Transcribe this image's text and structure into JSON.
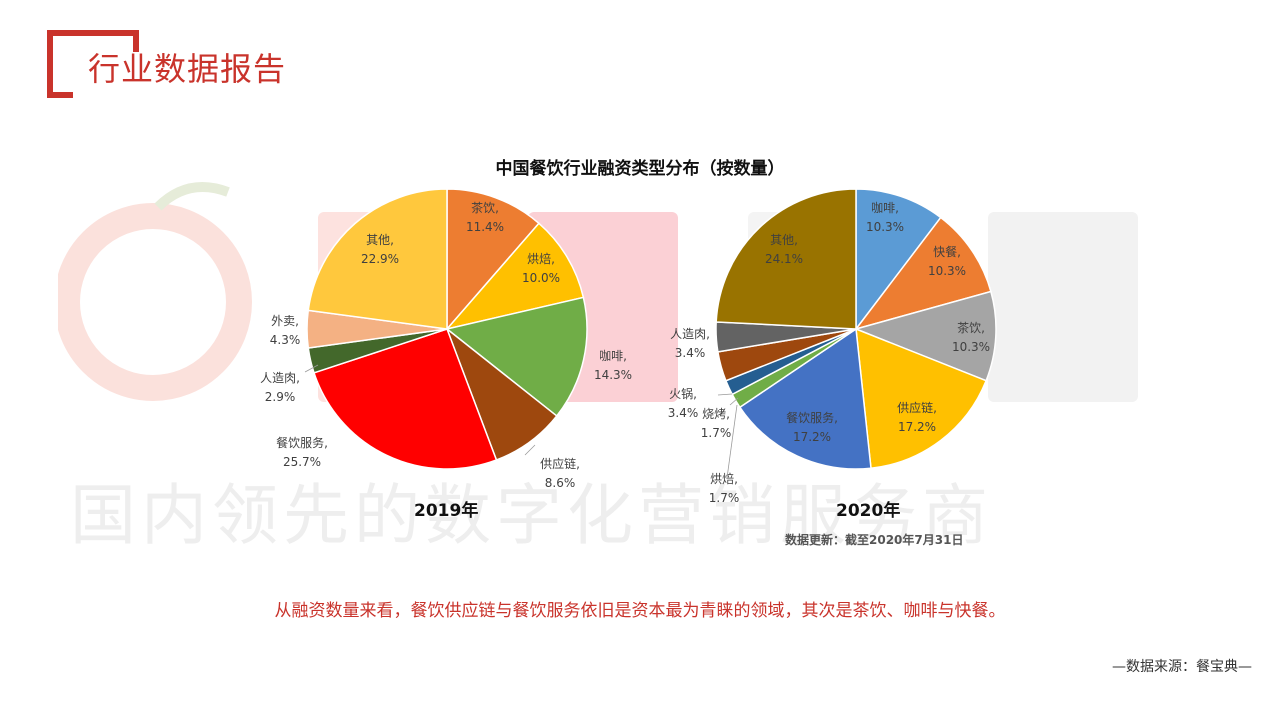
{
  "header": {
    "title": "行业数据报告"
  },
  "watermark": {
    "brand_text": "国内领先的数字化营销服务商"
  },
  "chart_title": "中国餐饮行业融资类型分布（按数量）",
  "update_note": "数据更新：截至2020年7月31日",
  "conclusion": "从融资数量来看，餐饮供应链与餐饮服务依旧是资本最为青睐的领域，其次是茶饮、咖啡与快餐。",
  "source": "—数据来源：餐宝典—",
  "colors": {
    "accent": "#c9332b"
  },
  "chart_data": [
    {
      "type": "pie",
      "title": "2019年",
      "unit": "%",
      "slices": [
        {
          "label": "茶饮",
          "value": 11.4,
          "color": "#ED7D31"
        },
        {
          "label": "烘焙",
          "value": 10.0,
          "color": "#FFC000"
        },
        {
          "label": "咖啡",
          "value": 14.3,
          "color": "#70AD47"
        },
        {
          "label": "供应链",
          "value": 8.6,
          "color": "#9E480E"
        },
        {
          "label": "餐饮服务",
          "value": 25.7,
          "color": "#FF0000"
        },
        {
          "label": "人造肉",
          "value": 2.9,
          "color": "#43682B"
        },
        {
          "label": "外卖",
          "value": 4.3,
          "color": "#F4B183"
        },
        {
          "label": "其他",
          "value": 22.9,
          "color": "#FFC83D"
        }
      ]
    },
    {
      "type": "pie",
      "title": "2020年",
      "unit": "%",
      "slices": [
        {
          "label": "咖啡",
          "value": 10.3,
          "color": "#5B9BD5"
        },
        {
          "label": "快餐",
          "value": 10.3,
          "color": "#ED7D31"
        },
        {
          "label": "茶饮",
          "value": 10.3,
          "color": "#A5A5A5"
        },
        {
          "label": "供应链",
          "value": 17.2,
          "color": "#FFC000"
        },
        {
          "label": "餐饮服务",
          "value": 17.2,
          "color": "#4472C4"
        },
        {
          "label": "烘焙",
          "value": 1.7,
          "color": "#70AD47"
        },
        {
          "label": "烧烤",
          "value": 1.7,
          "color": "#255E91"
        },
        {
          "label": "火锅",
          "value": 3.4,
          "color": "#9E480E"
        },
        {
          "label": "人造肉",
          "value": 3.4,
          "color": "#636363"
        },
        {
          "label": "其他",
          "value": 24.1,
          "color": "#997300"
        }
      ]
    }
  ]
}
